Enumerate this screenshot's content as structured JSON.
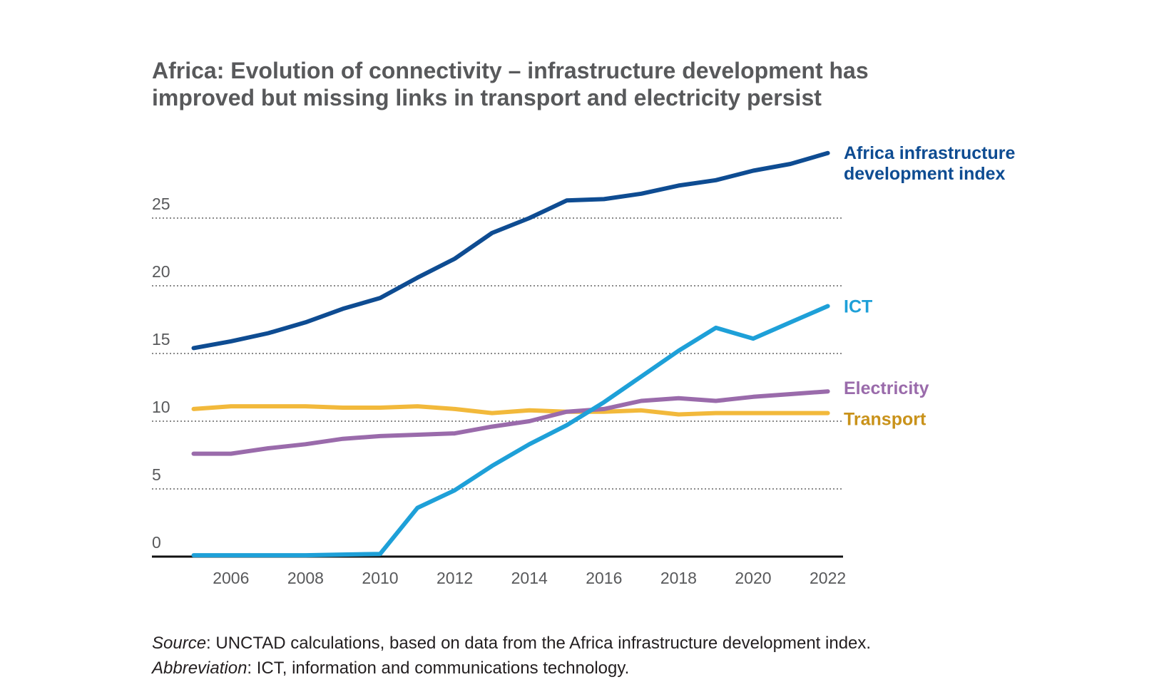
{
  "title_lines": [
    "Africa: Evolution of connectivity – infrastructure development has",
    "improved but missing links in transport and electricity persist"
  ],
  "footnote": {
    "source_label": "Source",
    "source_text": ": UNCTAD calculations, based on data from the Africa infrastructure development index.",
    "abbrev_label": "Abbreviation",
    "abbrev_text": ": ICT, information and communications technology."
  },
  "chart_data": {
    "type": "line",
    "x": [
      2005,
      2006,
      2007,
      2008,
      2009,
      2010,
      2011,
      2012,
      2013,
      2014,
      2015,
      2016,
      2017,
      2018,
      2019,
      2020,
      2021,
      2022
    ],
    "xticks": [
      "2006",
      "2008",
      "2010",
      "2012",
      "2014",
      "2016",
      "2018",
      "2020",
      "2022"
    ],
    "yticks": [
      "0",
      "5",
      "10",
      "15",
      "20",
      "25"
    ],
    "ylim": [
      0,
      30
    ],
    "grid": "horizontal dotted",
    "legend": "direct labels at line ends",
    "series": [
      {
        "name_lines": [
          "Africa infrastructure",
          "development index"
        ],
        "color": "#0e4c92",
        "values": [
          15.4,
          15.9,
          16.5,
          17.3,
          18.3,
          19.1,
          20.6,
          22.0,
          23.9,
          25.0,
          26.3,
          26.4,
          26.8,
          27.4,
          27.8,
          28.5,
          29.0,
          29.8
        ]
      },
      {
        "name_lines": [
          "ICT"
        ],
        "color": "#1ea0d8",
        "values": [
          0.1,
          0.1,
          0.1,
          0.1,
          0.15,
          0.2,
          3.6,
          4.9,
          6.7,
          8.3,
          9.7,
          11.4,
          13.3,
          15.2,
          16.9,
          16.1,
          17.3,
          18.5
        ]
      },
      {
        "name_lines": [
          "Electricity"
        ],
        "color": "#9a6bab",
        "values": [
          7.6,
          7.6,
          8.0,
          8.3,
          8.7,
          8.9,
          9.0,
          9.1,
          9.6,
          10.0,
          10.7,
          10.9,
          11.5,
          11.7,
          11.5,
          11.8,
          12.0,
          12.2
        ]
      },
      {
        "name_lines": [
          "Transport"
        ],
        "color": "#f2b93b",
        "label_color": "#c9921a",
        "values": [
          10.9,
          11.1,
          11.1,
          11.1,
          11.0,
          11.0,
          11.1,
          10.9,
          10.6,
          10.8,
          10.7,
          10.7,
          10.8,
          10.5,
          10.6,
          10.6,
          10.6,
          10.6
        ]
      }
    ]
  }
}
